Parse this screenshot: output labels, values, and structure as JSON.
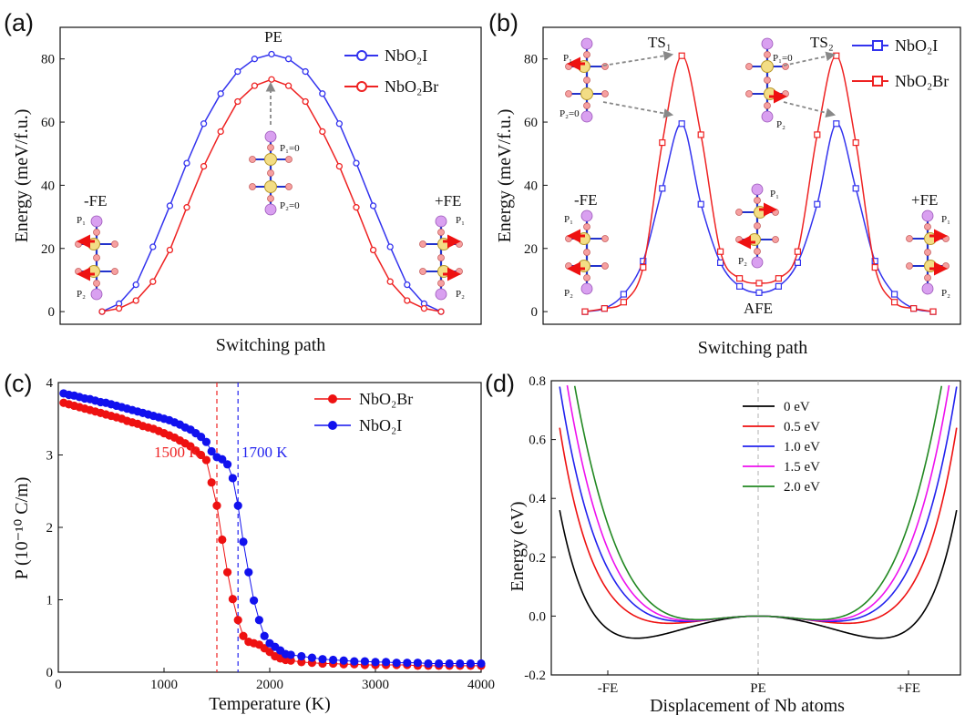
{
  "chart_data": [
    {
      "panel": "(a)",
      "type": "line",
      "xlabel": "Switching path",
      "ylabel": "Energy (meV/f.u.)",
      "xlim": [
        0,
        1
      ],
      "ylim": [
        -4,
        90
      ],
      "yticks": [
        0,
        20,
        40,
        60,
        80
      ],
      "x": [
        0,
        0.05,
        0.1,
        0.15,
        0.2,
        0.25,
        0.3,
        0.35,
        0.4,
        0.45,
        0.5,
        0.55,
        0.6,
        0.65,
        0.7,
        0.75,
        0.8,
        0.85,
        0.9,
        0.95,
        1.0
      ],
      "series": [
        {
          "name": "NbO₂I",
          "color": "#3333ee",
          "marker": "circle",
          "values": [
            0,
            2.5,
            8.5,
            20.5,
            33.5,
            47,
            59.5,
            69,
            76,
            80,
            81.5,
            80,
            76,
            69,
            59.5,
            47,
            33.5,
            20.5,
            8.5,
            2.5,
            0
          ]
        },
        {
          "name": "NbO₂Br",
          "color": "#ee2222",
          "marker": "circle",
          "values": [
            0,
            1,
            3.5,
            9.5,
            19.5,
            33,
            46,
            57,
            66.5,
            71.5,
            73.5,
            71.5,
            66.5,
            57,
            46,
            33,
            19.5,
            9.5,
            3.5,
            1,
            0
          ]
        }
      ],
      "annotations": {
        "top": "PE",
        "left": "-FE",
        "right": "+FE",
        "p1": "P₁",
        "p2": "P₂",
        "p1_zero": "P₁=0",
        "p2_zero": "P₂=0"
      }
    },
    {
      "panel": "(b)",
      "type": "line",
      "xlabel": "Switching path",
      "ylabel": "Energy (meV/f.u.)",
      "xlim": [
        0,
        1
      ],
      "ylim": [
        -4,
        90
      ],
      "yticks": [
        0,
        20,
        40,
        60,
        80
      ],
      "x": [
        0,
        0.056,
        0.111,
        0.167,
        0.222,
        0.278,
        0.333,
        0.389,
        0.444,
        0.5,
        0.556,
        0.611,
        0.667,
        0.722,
        0.778,
        0.833,
        0.889,
        0.944,
        1.0
      ],
      "series": [
        {
          "name": "NbO₂I",
          "color": "#3333ee",
          "marker": "square",
          "values": [
            0,
            1,
            5.5,
            16,
            39,
            59.5,
            34,
            15.5,
            8,
            6,
            8,
            15.5,
            34,
            59.5,
            39,
            16,
            5.5,
            1,
            0
          ]
        },
        {
          "name": "NbO₂Br",
          "color": "#ee2222",
          "marker": "square",
          "values": [
            0,
            1,
            3,
            14,
            53.5,
            81,
            56,
            19,
            10.5,
            9,
            10.5,
            19,
            56,
            81,
            53.5,
            14,
            3,
            1,
            0
          ]
        }
      ],
      "annotations": {
        "ts1": "TS₁",
        "ts2": "TS₂",
        "left": "-FE",
        "mid": "AFE",
        "right": "+FE",
        "p1": "P₁",
        "p2": "P₂",
        "p1_zero": "P₁=0",
        "p2_zero": "P₂=0"
      }
    },
    {
      "panel": "(c)",
      "type": "scatter",
      "xlabel": "Temperature (K)",
      "ylabel": "P (10⁻¹⁰ C/m)",
      "xlim": [
        0,
        4000
      ],
      "ylim": [
        0,
        4
      ],
      "xticks": [
        0,
        1000,
        2000,
        3000,
        4000
      ],
      "yticks": [
        0,
        1,
        2,
        3,
        4
      ],
      "vlines": [
        {
          "x": 1500,
          "label": "1500 K",
          "color": "#ee2222"
        },
        {
          "x": 1700,
          "label": "1700 K",
          "color": "#2222ee"
        }
      ],
      "series": [
        {
          "name": "NbO₂Br",
          "color": "#ee1111",
          "x": [
            50,
            100,
            150,
            200,
            250,
            300,
            350,
            400,
            450,
            500,
            550,
            600,
            650,
            700,
            750,
            800,
            850,
            900,
            950,
            1000,
            1050,
            1100,
            1150,
            1200,
            1250,
            1300,
            1350,
            1400,
            1450,
            1500,
            1550,
            1600,
            1650,
            1700,
            1750,
            1800,
            1850,
            1900,
            1950,
            2000,
            2050,
            2100,
            2150,
            2200,
            2300,
            2400,
            2500,
            2600,
            2700,
            2800,
            2900,
            3000,
            3100,
            3200,
            3300,
            3400,
            3500,
            3600,
            3700,
            3800,
            3900,
            4000
          ],
          "values": [
            3.72,
            3.7,
            3.68,
            3.66,
            3.64,
            3.62,
            3.6,
            3.58,
            3.56,
            3.54,
            3.52,
            3.5,
            3.47,
            3.45,
            3.43,
            3.4,
            3.38,
            3.36,
            3.33,
            3.3,
            3.27,
            3.24,
            3.2,
            3.16,
            3.12,
            3.06,
            3.0,
            2.93,
            2.62,
            2.3,
            1.83,
            1.38,
            1.01,
            0.72,
            0.5,
            0.42,
            0.4,
            0.38,
            0.33,
            0.28,
            0.22,
            0.19,
            0.17,
            0.16,
            0.14,
            0.13,
            0.12,
            0.12,
            0.11,
            0.11,
            0.1,
            0.1,
            0.1,
            0.1,
            0.1,
            0.09,
            0.09,
            0.09,
            0.09,
            0.09,
            0.09,
            0.09
          ]
        },
        {
          "name": "NbO₂I",
          "color": "#1111ee",
          "x": [
            50,
            100,
            150,
            200,
            250,
            300,
            350,
            400,
            450,
            500,
            550,
            600,
            650,
            700,
            750,
            800,
            850,
            900,
            950,
            1000,
            1050,
            1100,
            1150,
            1200,
            1250,
            1300,
            1350,
            1400,
            1450,
            1500,
            1550,
            1600,
            1650,
            1700,
            1750,
            1800,
            1850,
            1900,
            1950,
            2000,
            2050,
            2100,
            2150,
            2200,
            2300,
            2400,
            2500,
            2600,
            2700,
            2800,
            2900,
            3000,
            3100,
            3200,
            3300,
            3400,
            3500,
            3600,
            3700,
            3800,
            3900,
            4000
          ],
          "values": [
            3.85,
            3.83,
            3.82,
            3.8,
            3.78,
            3.77,
            3.75,
            3.73,
            3.72,
            3.7,
            3.68,
            3.66,
            3.64,
            3.62,
            3.6,
            3.58,
            3.56,
            3.54,
            3.52,
            3.5,
            3.48,
            3.45,
            3.42,
            3.38,
            3.35,
            3.3,
            3.25,
            3.18,
            3.05,
            2.97,
            2.94,
            2.87,
            2.68,
            2.3,
            1.8,
            1.38,
            0.99,
            0.72,
            0.5,
            0.4,
            0.35,
            0.3,
            0.25,
            0.24,
            0.22,
            0.2,
            0.18,
            0.17,
            0.16,
            0.15,
            0.15,
            0.14,
            0.14,
            0.13,
            0.13,
            0.13,
            0.12,
            0.12,
            0.12,
            0.12,
            0.12,
            0.12
          ]
        }
      ]
    },
    {
      "panel": "(d)",
      "type": "line",
      "xlabel": "Displacement of Nb atoms",
      "ylabel": "Energy (eV)",
      "xlim": [
        -1.4,
        1.4
      ],
      "ylim": [
        -0.2,
        0.8
      ],
      "yticks": [
        -0.2,
        0.0,
        0.2,
        0.4,
        0.6,
        0.8
      ],
      "ytick_labels": [
        "-0.2",
        "0.0",
        "0.2",
        "0.4",
        "0.6",
        "0.8"
      ],
      "xticks": [
        -1,
        0,
        1
      ],
      "xtick_labels": [
        "-FE",
        "PE",
        "+FE"
      ],
      "center_line": {
        "x": 0,
        "color": "#b0b0b0"
      },
      "series": [
        {
          "name": "0 eV",
          "color": "#000000",
          "min_at": 0.9,
          "depth": 0.085,
          "reaches": 0.36
        },
        {
          "name": "0.5 eV",
          "color": "#ee1111",
          "min_at": 0.6,
          "depth": 0.025,
          "reaches": 0.64
        },
        {
          "name": "1.0 eV",
          "color": "#2222ee",
          "min_at": 0.5,
          "depth": 0.018,
          "reaches": 0.78
        },
        {
          "name": "1.5 eV",
          "color": "#ee11ee",
          "min_at": 0.45,
          "depth": 0.015,
          "reaches": 0.95
        },
        {
          "name": "2.0 eV",
          "color": "#228822",
          "min_at": 0.4,
          "depth": 0.012,
          "reaches": 1.1
        }
      ]
    }
  ]
}
